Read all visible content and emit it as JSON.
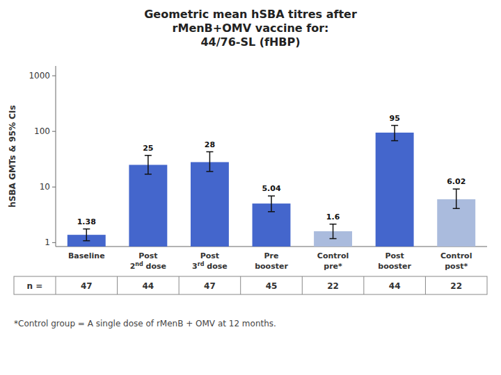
{
  "chart_data": {
    "type": "bar",
    "title": [
      "Geometric mean hSBA titres after",
      "rMenB+OMV vaccine for:",
      "44/76-SL (fHBP)"
    ],
    "ylabel": "hSBA GMTs & 95% CIs",
    "categories": [
      "Baseline",
      "Post\n2nd dose",
      "Post\n3rd dose",
      "Pre\nbooster",
      "Control\npre*",
      "Post\nbooster",
      "Control\npost*"
    ],
    "values": [
      1.38,
      25,
      28,
      5.04,
      1.6,
      95,
      6.02
    ],
    "ci_lower": [
      1.08,
      17,
      19,
      3.6,
      1.18,
      68,
      4.1
    ],
    "ci_upper": [
      1.76,
      37,
      43,
      6.9,
      2.15,
      128,
      9.2
    ],
    "colors": [
      "#4466CC",
      "#4466CC",
      "#4466CC",
      "#4466CC",
      "#AABBDD",
      "#4466CC",
      "#AABBDD"
    ],
    "log": "y",
    "ylim": [
      0.85,
      1500
    ],
    "yticks": [
      1,
      10,
      100,
      1000
    ],
    "grid": false,
    "data_labels": true,
    "n_label": "n =",
    "n": [
      47,
      44,
      47,
      45,
      22,
      44,
      22
    ],
    "footnote": "*Control group = A single dose of rMenB + OMV at 12 months."
  }
}
